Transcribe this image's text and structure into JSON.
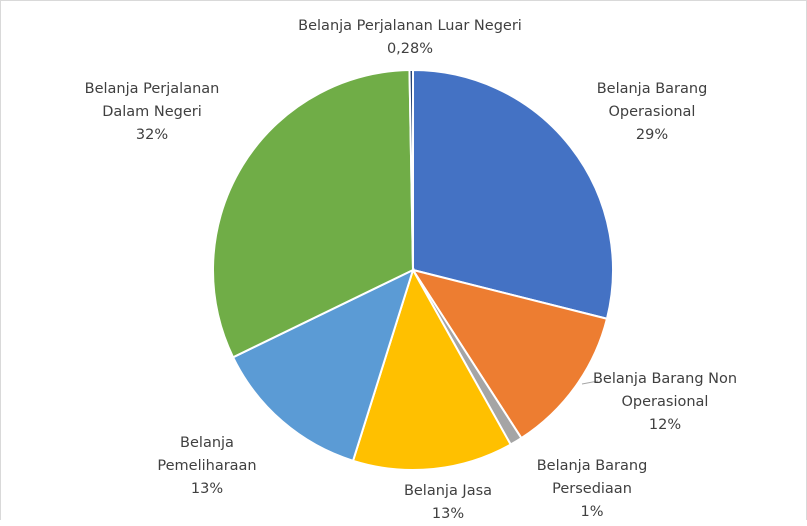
{
  "chart_data": {
    "type": "pie",
    "categories": [
      "Belanja Barang Operasional",
      "Belanja Barang Non Operasional",
      "Belanja Barang Persediaan",
      "Belanja Jasa",
      "Belanja Pemeliharaan",
      "Belanja Perjalanan Dalam Negeri",
      "Belanja Perjalanan Luar Negeri"
    ],
    "values": [
      29,
      12,
      1,
      13,
      13,
      32,
      0.28
    ],
    "value_labels": [
      "29%",
      "12%",
      "1%",
      "13%",
      "13%",
      "32%",
      "0,28%"
    ],
    "colors": [
      "#4472c4",
      "#ed7d31",
      "#a5a5a5",
      "#ffc000",
      "#5b9bd5",
      "#70ad47",
      "#264478"
    ]
  }
}
